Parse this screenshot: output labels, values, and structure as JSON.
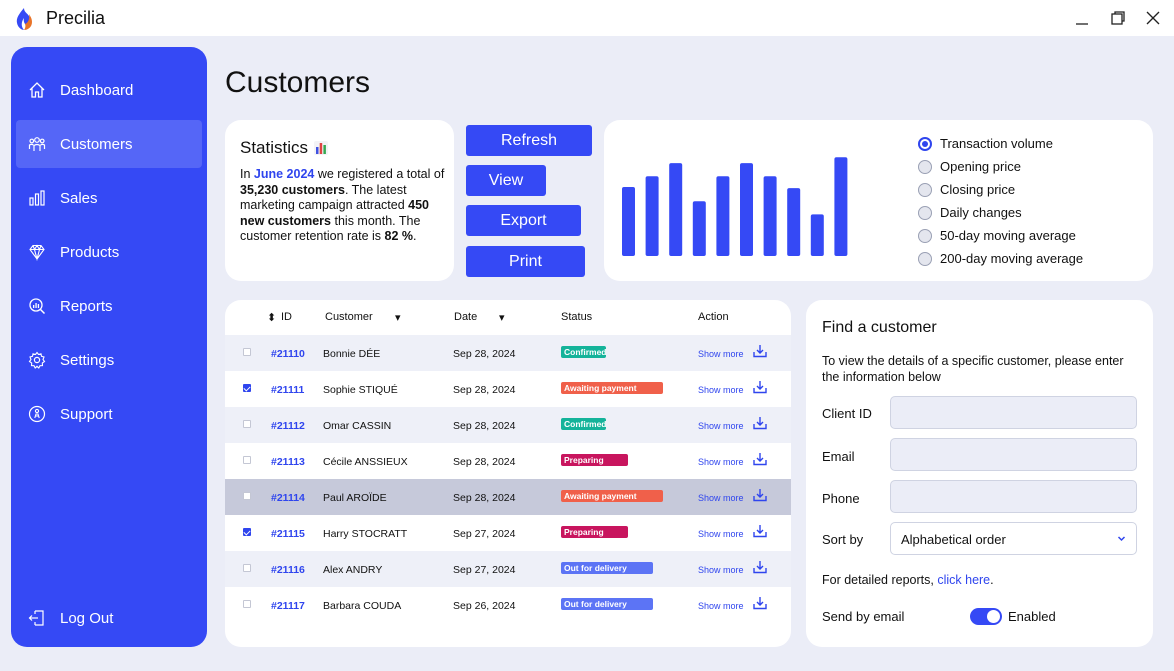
{
  "app": {
    "title": "Precilia"
  },
  "sidebar": {
    "items": [
      {
        "label": "Dashboard",
        "icon": "home-icon"
      },
      {
        "label": "Customers",
        "icon": "users-icon",
        "active": true
      },
      {
        "label": "Sales",
        "icon": "bar-chart-icon"
      },
      {
        "label": "Products",
        "icon": "diamond-icon"
      },
      {
        "label": "Reports",
        "icon": "magnifier-report-icon"
      },
      {
        "label": "Settings",
        "icon": "gear-icon"
      },
      {
        "label": "Support",
        "icon": "support-icon"
      }
    ],
    "logout": {
      "label": "Log Out",
      "icon": "logout-icon"
    }
  },
  "page": {
    "title": "Customers"
  },
  "stats": {
    "title": "Statistics",
    "icon": "bar-chart-emoji-icon",
    "text_1": "In ",
    "month": "June 2024",
    "text_2": " we registered a total of ",
    "customers_total": "35,230 customers",
    "text_3": ". The latest marketing campaign attracted ",
    "new_customers": "450 new customers",
    "text_4": " this month. The customer retention rate is ",
    "retention": "82 %",
    "text_5": "."
  },
  "actions": {
    "refresh": "Refresh",
    "view": "View",
    "export": "Export",
    "print": "Print"
  },
  "chart_data": {
    "type": "bar",
    "values": [
      58,
      67,
      78,
      46,
      67,
      78,
      67,
      57,
      35,
      83
    ],
    "color": "#3549f5",
    "ylim": [
      0,
      100
    ],
    "options": [
      {
        "label": "Transaction volume",
        "checked": true
      },
      {
        "label": "Opening price",
        "checked": false
      },
      {
        "label": "Closing price",
        "checked": false
      },
      {
        "label": "Daily changes",
        "checked": false
      },
      {
        "label": "50-day moving average",
        "checked": false
      },
      {
        "label": "200-day moving average",
        "checked": false
      }
    ]
  },
  "table": {
    "headers": {
      "id": "ID",
      "customer": "Customer",
      "date": "Date",
      "status": "Status",
      "action": "Action"
    },
    "sort_icon": "▾",
    "id_sort_icon": "⬍",
    "rows": [
      {
        "id": "#21110",
        "customer": "Bonnie DÉE",
        "date": "Sep 28, 2024",
        "status": "Confirmed",
        "status_class": "st-confirmed",
        "checked": false,
        "action": "Show more"
      },
      {
        "id": "#21111",
        "customer": "Sophie STIQUÉ",
        "date": "Sep 28, 2024",
        "status": "Awaiting payment",
        "status_class": "st-awaiting",
        "checked": true,
        "action": "Show more"
      },
      {
        "id": "#21112",
        "customer": "Omar CASSIN",
        "date": "Sep 28, 2024",
        "status": "Confirmed",
        "status_class": "st-confirmed",
        "checked": false,
        "action": "Show more"
      },
      {
        "id": "#21113",
        "customer": "Cécile ANSSIEUX",
        "date": "Sep 28, 2024",
        "status": "Preparing",
        "status_class": "st-preparing",
        "checked": false,
        "action": "Show more"
      },
      {
        "id": "#21114",
        "customer": "Paul AROÏDE",
        "date": "Sep 28, 2024",
        "status": "Awaiting payment",
        "status_class": "st-awaiting",
        "checked": false,
        "selected": true,
        "action": "Show more"
      },
      {
        "id": "#21115",
        "customer": "Harry STOCRATT",
        "date": "Sep 27, 2024",
        "status": "Preparing",
        "status_class": "st-preparing",
        "checked": true,
        "action": "Show more"
      },
      {
        "id": "#21116",
        "customer": "Alex ANDRY",
        "date": "Sep 27, 2024",
        "status": "Out for delivery",
        "status_class": "st-delivery",
        "checked": false,
        "action": "Show more"
      },
      {
        "id": "#21117",
        "customer": "Barbara COUDA",
        "date": "Sep 26, 2024",
        "status": "Out for delivery",
        "status_class": "st-delivery",
        "checked": false,
        "action": "Show more"
      }
    ]
  },
  "find": {
    "title": "Find a customer",
    "description": "To view the details of a specific customer, please enter the information below",
    "fields": {
      "client_id": "Client ID",
      "email": "Email",
      "phone": "Phone"
    },
    "sort_label": "Sort by",
    "sort_value": "Alphabetical order",
    "report_text": "For detailed reports, ",
    "report_link": "click here",
    "report_end": ".",
    "email_label": "Send by email",
    "email_toggle": "Enabled"
  },
  "colors": {
    "primary": "#3549f5",
    "link": "#2f45ee",
    "background": "#ebedf7"
  }
}
